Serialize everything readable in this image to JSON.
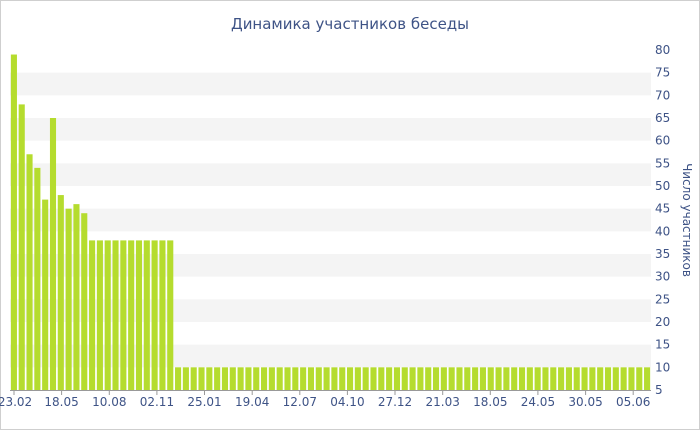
{
  "chart_data": {
    "type": "bar",
    "title": "Динамика участников беседы",
    "ylabel": "Число участников",
    "xlabel": "",
    "ylim": [
      5,
      80
    ],
    "yticks": [
      5,
      10,
      15,
      20,
      25,
      30,
      35,
      40,
      45,
      50,
      55,
      60,
      65,
      70,
      75,
      80
    ],
    "x_tick_labels": [
      "23.02",
      "18.05",
      "10.08",
      "02.11",
      "25.01",
      "19.04",
      "12.07",
      "04.10",
      "27.12",
      "21.03",
      "18.05",
      "24.05",
      "30.05",
      "05.06"
    ],
    "grid": "alternating horizontal bands",
    "series": [
      {
        "color": "#b5dc2e",
        "values": [
          79,
          68,
          57,
          54,
          47,
          65,
          48,
          45,
          46,
          44,
          38,
          38,
          38,
          38,
          38,
          38,
          38,
          38,
          38,
          38,
          38,
          10,
          10,
          10,
          10,
          10,
          10,
          10,
          10,
          10,
          10,
          10,
          10,
          10,
          10,
          10,
          10,
          10,
          10,
          10,
          10,
          10,
          10,
          10,
          10,
          10,
          10,
          10,
          10,
          10,
          10,
          10,
          10,
          10,
          10,
          10,
          10,
          10,
          10,
          10,
          10,
          10,
          10,
          10,
          10,
          10,
          10,
          10,
          10,
          10,
          10,
          10,
          10,
          10,
          10,
          10,
          10,
          10,
          10,
          10,
          10,
          10
        ]
      }
    ]
  }
}
